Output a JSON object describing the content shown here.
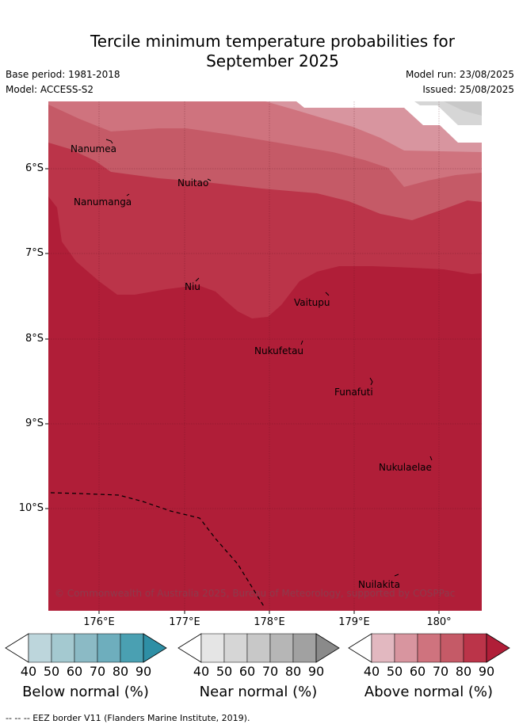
{
  "title_line1": "Tercile minimum temperature probabilities for",
  "title_line2": "September 2025",
  "base_period": "Base period: 1981-2018",
  "model": "Model: ACCESS-S2",
  "model_run": "Model run: 23/08/2025",
  "issued": "Issued: 25/08/2025",
  "copyright": "© Commonwealth of Australia 2025, Bureau of Meteorology, supported by COSPPac",
  "footnote": "--  --  -- EEZ border V11 (Flanders Marine Institute, 2019).",
  "lat_labels": [
    "6°S",
    "7°S",
    "8°S",
    "9°S",
    "10°S"
  ],
  "lon_labels": [
    "176°E",
    "177°E",
    "178°E",
    "179°E",
    "180°"
  ],
  "islands": {
    "nanumea": "Nanumea",
    "nuitao": "Nuitao",
    "nanumanga": "Nanumanga",
    "niu": "Niu",
    "vaitupu": "Vaitupu",
    "nukufetau": "Nukufetau",
    "funafuti": "Funafuti",
    "nukulaelae": "Nukulaelae",
    "nuilakita": "Nuilakita"
  },
  "legend": {
    "ticks": [
      "40",
      "50",
      "60",
      "70",
      "80",
      "90"
    ],
    "below_title": "Below normal (%)",
    "near_title": "Near normal (%)",
    "above_title": "Above normal (%)",
    "below_colors": [
      "#ffffff",
      "#bdd6dc",
      "#a4c9d0",
      "#8bbac5",
      "#6eaebd",
      "#4aa0b2",
      "#2e8fa5"
    ],
    "near_colors": [
      "#ffffff",
      "#e5e5e5",
      "#d6d6d6",
      "#c8c8c8",
      "#b6b6b6",
      "#a1a1a1",
      "#8a8a8a"
    ],
    "above_colors": [
      "#ffffff",
      "#e2b8c0",
      "#d8959f",
      "#cf737e",
      "#c55a67",
      "#bb3449",
      "#b01e38"
    ]
  }
}
